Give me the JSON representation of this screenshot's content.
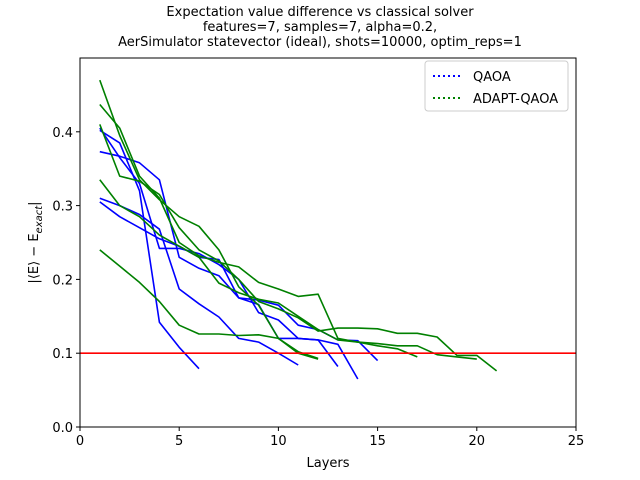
{
  "chart_data": {
    "type": "line",
    "title_lines": [
      "Expectation value difference vs classical solver",
      "features=7, samples=7, alpha=0.2,",
      "AerSimulator statevector (ideal), shots=10000, optim_reps=1"
    ],
    "xlabel": "Layers",
    "ylabel": "|⟨E⟩ − E",
    "ylabel_sub": "exact",
    "ylabel_end": "|",
    "xlim": [
      0,
      25
    ],
    "ylim": [
      0,
      0.5
    ],
    "xticks": [
      "0",
      "5",
      "10",
      "15",
      "20",
      "25"
    ],
    "yticks": [
      "0.0",
      "0.1",
      "0.2",
      "0.3",
      "0.4"
    ],
    "threshold": {
      "value": 0.1,
      "color": "#ff0000"
    },
    "legend": {
      "position": "top-right",
      "entries": [
        {
          "label": "QAOA",
          "color": "#0000ff"
        },
        {
          "label": "ADAPT-QAOA",
          "color": "#008000"
        }
      ]
    },
    "series": [
      {
        "group": "QAOA",
        "color": "#0000ff",
        "x": [
          1,
          2,
          3,
          4,
          5,
          6,
          7,
          8,
          9,
          10,
          11,
          12,
          13,
          14
        ],
        "y": [
          0.405,
          0.365,
          0.33,
          0.242,
          0.242,
          0.235,
          0.22,
          0.2,
          0.155,
          0.145,
          0.12,
          0.118,
          0.112,
          0.065
        ]
      },
      {
        "group": "QAOA",
        "color": "#0000ff",
        "x": [
          1,
          2,
          3,
          4,
          5,
          6
        ],
        "y": [
          0.402,
          0.385,
          0.32,
          0.142,
          0.108,
          0.079
        ]
      },
      {
        "group": "QAOA",
        "color": "#0000ff",
        "x": [
          1,
          2,
          3,
          4,
          5,
          6,
          7,
          8,
          9,
          10,
          11,
          12,
          13,
          14,
          15
        ],
        "y": [
          0.373,
          0.367,
          0.358,
          0.335,
          0.23,
          0.215,
          0.205,
          0.175,
          0.172,
          0.165,
          0.138,
          0.132,
          0.118,
          0.117,
          0.09
        ]
      },
      {
        "group": "QAOA",
        "color": "#0000ff",
        "x": [
          1,
          2,
          3,
          4,
          5,
          6,
          7,
          8,
          9,
          10,
          11
        ],
        "y": [
          0.31,
          0.3,
          0.288,
          0.268,
          0.187,
          0.167,
          0.149,
          0.12,
          0.115,
          0.1,
          0.084
        ]
      },
      {
        "group": "QAOA",
        "color": "#0000ff",
        "x": [
          1,
          2,
          3,
          4,
          5,
          6,
          7,
          8,
          9,
          10,
          11,
          12,
          13
        ],
        "y": [
          0.305,
          0.285,
          0.27,
          0.255,
          0.245,
          0.23,
          0.227,
          0.175,
          0.166,
          0.12,
          0.12,
          0.118,
          0.082
        ]
      },
      {
        "group": "ADAPT-QAOA",
        "color": "#008000",
        "x": [
          1,
          2,
          3,
          4,
          5,
          6,
          7,
          8,
          9,
          10,
          11,
          12
        ],
        "y": [
          0.47,
          0.395,
          0.335,
          0.308,
          0.285,
          0.272,
          0.24,
          0.19,
          0.165,
          0.12,
          0.1,
          0.092
        ]
      },
      {
        "group": "ADAPT-QAOA",
        "color": "#008000",
        "x": [
          1,
          2,
          3,
          4,
          5,
          6,
          7,
          8,
          9,
          10,
          11,
          12,
          13,
          14,
          15,
          16,
          17
        ],
        "y": [
          0.437,
          0.405,
          0.34,
          0.31,
          0.25,
          0.232,
          0.223,
          0.217,
          0.196,
          0.187,
          0.177,
          0.18,
          0.12,
          0.115,
          0.11,
          0.106,
          0.095
        ]
      },
      {
        "group": "ADAPT-QAOA",
        "color": "#008000",
        "x": [
          1,
          2,
          3,
          4,
          5,
          6,
          7,
          8,
          9,
          10,
          11,
          12,
          13,
          14,
          15,
          16,
          17,
          18,
          19,
          20,
          21
        ],
        "y": [
          0.41,
          0.34,
          0.333,
          0.315,
          0.27,
          0.24,
          0.225,
          0.2,
          0.17,
          0.16,
          0.148,
          0.13,
          0.134,
          0.134,
          0.133,
          0.127,
          0.127,
          0.122,
          0.097,
          0.097,
          0.076
        ]
      },
      {
        "group": "ADAPT-QAOA",
        "color": "#008000",
        "x": [
          1,
          2,
          3,
          4,
          5,
          6,
          7,
          8,
          9,
          10,
          11,
          12,
          13,
          14,
          15,
          16,
          17,
          18,
          19,
          20
        ],
        "y": [
          0.335,
          0.3,
          0.285,
          0.26,
          0.245,
          0.23,
          0.195,
          0.182,
          0.173,
          0.168,
          0.15,
          0.132,
          0.118,
          0.115,
          0.113,
          0.11,
          0.11,
          0.098,
          0.095,
          0.092
        ]
      },
      {
        "group": "ADAPT-QAOA",
        "color": "#008000",
        "x": [
          1,
          2,
          3,
          4,
          5,
          6,
          7,
          8,
          9,
          10,
          11,
          12
        ],
        "y": [
          0.24,
          0.218,
          0.196,
          0.17,
          0.138,
          0.126,
          0.126,
          0.124,
          0.125,
          0.12,
          0.102,
          0.093
        ]
      }
    ]
  }
}
